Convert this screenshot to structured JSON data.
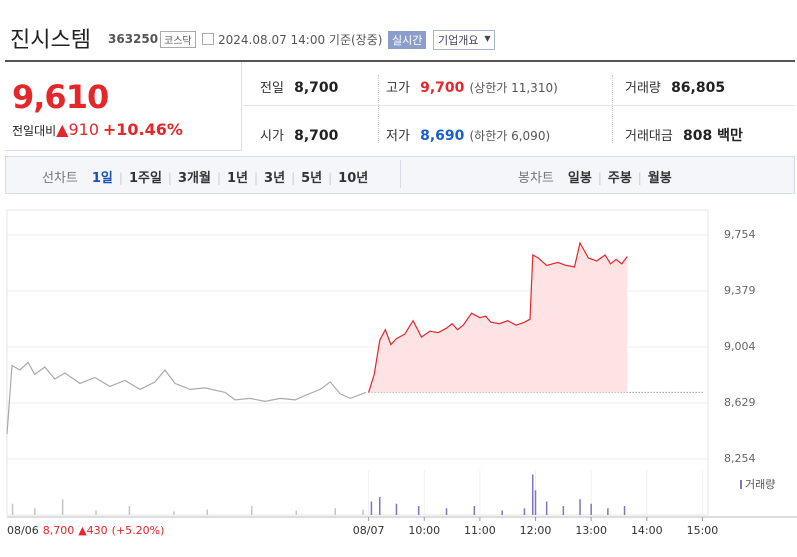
{
  "header": {
    "name": "진시스템",
    "code": "363250",
    "market": "코스닥",
    "datetime": "2024.08.07 14:00 기준(장중)",
    "badge": "실시간",
    "menu": "기업개요"
  },
  "price": {
    "current": "9,610",
    "change_label": "전일대비",
    "change": "910",
    "change_rate": "+10.46%"
  },
  "stats": {
    "prev": {
      "label": "전일",
      "value": "8,700"
    },
    "open": {
      "label": "시가",
      "value": "8,700"
    },
    "high": {
      "label": "고가",
      "value": "9,700",
      "note": "(상한가 11,310)"
    },
    "low": {
      "label": "저가",
      "value": "8,690",
      "note": "(하한가 6,090)"
    },
    "volume": {
      "label": "거래량",
      "value": "86,805"
    },
    "amount": {
      "label": "거래대금",
      "value": "808 백만"
    }
  },
  "tabs": {
    "line_label": "선차트",
    "line": [
      "1일",
      "1주일",
      "3개월",
      "1년",
      "3년",
      "5년",
      "10년"
    ],
    "candle_label": "봉차트",
    "candle": [
      "일봉",
      "주봉",
      "월봉"
    ]
  },
  "chart_data": {
    "type": "line",
    "xlim": [
      0,
      12.6
    ],
    "ylim": [
      8214,
      9921
    ],
    "yticks": [
      {
        "value": 8254,
        "label": "8,254"
      },
      {
        "value": 8629,
        "label": "8,629"
      },
      {
        "value": 9004,
        "label": "9,004"
      },
      {
        "value": 9379,
        "label": "9,379"
      },
      {
        "value": 9754,
        "label": "9,754"
      }
    ],
    "xticks": [
      {
        "value": 6.5,
        "label": "08/07"
      },
      {
        "value": 7.5,
        "label": "10:00"
      },
      {
        "value": 8.5,
        "label": "11:00"
      },
      {
        "value": 9.5,
        "label": "12:00"
      },
      {
        "value": 10.5,
        "label": "13:00"
      },
      {
        "value": 11.5,
        "label": "14:00"
      },
      {
        "value": 12.5,
        "label": "15:00"
      }
    ],
    "prev_close": 8700,
    "series": [
      {
        "color": "#aaaaaa",
        "x": [
          0,
          0.09,
          0.23,
          0.38,
          0.5,
          0.68,
          0.86,
          1.04,
          1.31,
          1.58,
          1.85,
          2.12,
          2.39,
          2.66,
          2.84,
          3.02,
          3.29,
          3.56,
          3.92,
          4.1,
          4.37,
          4.64,
          4.91,
          5.18,
          5.36,
          5.63,
          5.81,
          5.99,
          6.17,
          6.45
        ],
        "values": [
          8420,
          8880,
          8850,
          8900,
          8820,
          8870,
          8790,
          8830,
          8760,
          8800,
          8740,
          8780,
          8720,
          8770,
          8850,
          8760,
          8720,
          8730,
          8700,
          8650,
          8660,
          8640,
          8660,
          8650,
          8680,
          8720,
          8770,
          8690,
          8660,
          8700
        ]
      },
      {
        "color": "#e5262a",
        "fill": "#fde3e3",
        "x": [
          6.5,
          6.6,
          6.7,
          6.8,
          6.9,
          7.0,
          7.15,
          7.3,
          7.45,
          7.6,
          7.75,
          7.9,
          8.0,
          8.1,
          8.2,
          8.35,
          8.5,
          8.6,
          8.7,
          8.85,
          9.0,
          9.15,
          9.3,
          9.4,
          9.45,
          9.55,
          9.7,
          9.8,
          9.9,
          10.05,
          10.2,
          10.3,
          10.45,
          10.6,
          10.75,
          10.85,
          10.95,
          11.05,
          11.15
        ],
        "values": [
          8700,
          8820,
          9050,
          9120,
          9020,
          9060,
          9090,
          9180,
          9070,
          9110,
          9100,
          9130,
          9160,
          9120,
          9150,
          9230,
          9200,
          9210,
          9170,
          9160,
          9180,
          9150,
          9170,
          9190,
          9620,
          9600,
          9550,
          9560,
          9570,
          9550,
          9540,
          9700,
          9600,
          9580,
          9620,
          9560,
          9590,
          9560,
          9610
        ]
      }
    ],
    "volume_label": "거래량",
    "vlim": [
      0,
      100
    ],
    "volume": [
      {
        "color": "#c4c4c4",
        "x": [
          0.1,
          0.5,
          1.0,
          1.6,
          2.2,
          3.0,
          3.6,
          4.4,
          5.2,
          5.9,
          6.4
        ],
        "values": [
          25,
          15,
          35,
          10,
          20,
          8,
          12,
          20,
          10,
          15,
          12
        ]
      },
      {
        "color": "#8073c8",
        "x": [
          6.55,
          6.7,
          7.0,
          7.4,
          7.9,
          8.4,
          8.9,
          9.3,
          9.45,
          9.5,
          9.7,
          10.0,
          10.3,
          10.5,
          10.8,
          11.1
        ],
        "values": [
          30,
          40,
          25,
          20,
          15,
          20,
          10,
          15,
          90,
          55,
          30,
          20,
          35,
          25,
          15,
          20
        ]
      }
    ],
    "footnote": {
      "date": "08/06",
      "price": "8,700",
      "change": "430",
      "rate": "(+5.20%)"
    }
  }
}
